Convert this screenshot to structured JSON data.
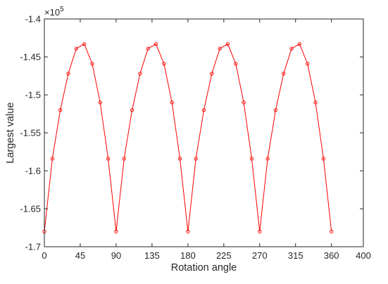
{
  "chart_data": {
    "type": "line",
    "xlabel": "Rotation angle",
    "ylabel": "Largest value",
    "xlim": [
      0,
      400
    ],
    "ylim": [
      -1.7,
      -1.4
    ],
    "y_multiplier": {
      "base": "×10",
      "exponent": "5"
    },
    "x_ticks": [
      {
        "value": 0,
        "label": "0"
      },
      {
        "value": 45,
        "label": "45"
      },
      {
        "value": 90,
        "label": "90"
      },
      {
        "value": 135,
        "label": "135"
      },
      {
        "value": 180,
        "label": "180"
      },
      {
        "value": 225,
        "label": "225"
      },
      {
        "value": 270,
        "label": "270"
      },
      {
        "value": 315,
        "label": "315"
      },
      {
        "value": 360,
        "label": "360"
      },
      {
        "value": 400,
        "label": "400"
      }
    ],
    "y_ticks": [
      {
        "value": -1.4,
        "label": "-1.4"
      },
      {
        "value": -1.45,
        "label": "-1.45"
      },
      {
        "value": -1.5,
        "label": "-1.5"
      },
      {
        "value": -1.55,
        "label": "-1.55"
      },
      {
        "value": -1.6,
        "label": "-1.6"
      },
      {
        "value": -1.65,
        "label": "-1.65"
      },
      {
        "value": -1.7,
        "label": "-1.7"
      }
    ],
    "grid": false,
    "legend": "none",
    "series": [
      {
        "color": "#ff0000",
        "marker": "circle",
        "x": [
          0,
          10,
          20,
          30,
          40,
          50,
          60,
          70,
          80,
          90,
          100,
          110,
          120,
          130,
          140,
          150,
          160,
          170,
          180,
          190,
          200,
          210,
          220,
          230,
          240,
          250,
          260,
          270,
          280,
          290,
          300,
          310,
          320,
          330,
          340,
          350,
          360
        ],
        "y": [
          -1.68,
          -1.584,
          -1.52,
          -1.472,
          -1.439,
          -1.433,
          -1.459,
          -1.51,
          -1.584,
          -1.68,
          -1.584,
          -1.52,
          -1.472,
          -1.439,
          -1.433,
          -1.459,
          -1.51,
          -1.584,
          -1.68,
          -1.584,
          -1.52,
          -1.472,
          -1.439,
          -1.433,
          -1.459,
          -1.51,
          -1.584,
          -1.68,
          -1.584,
          -1.52,
          -1.472,
          -1.439,
          -1.433,
          -1.459,
          -1.51,
          -1.584,
          -1.68
        ]
      }
    ]
  }
}
